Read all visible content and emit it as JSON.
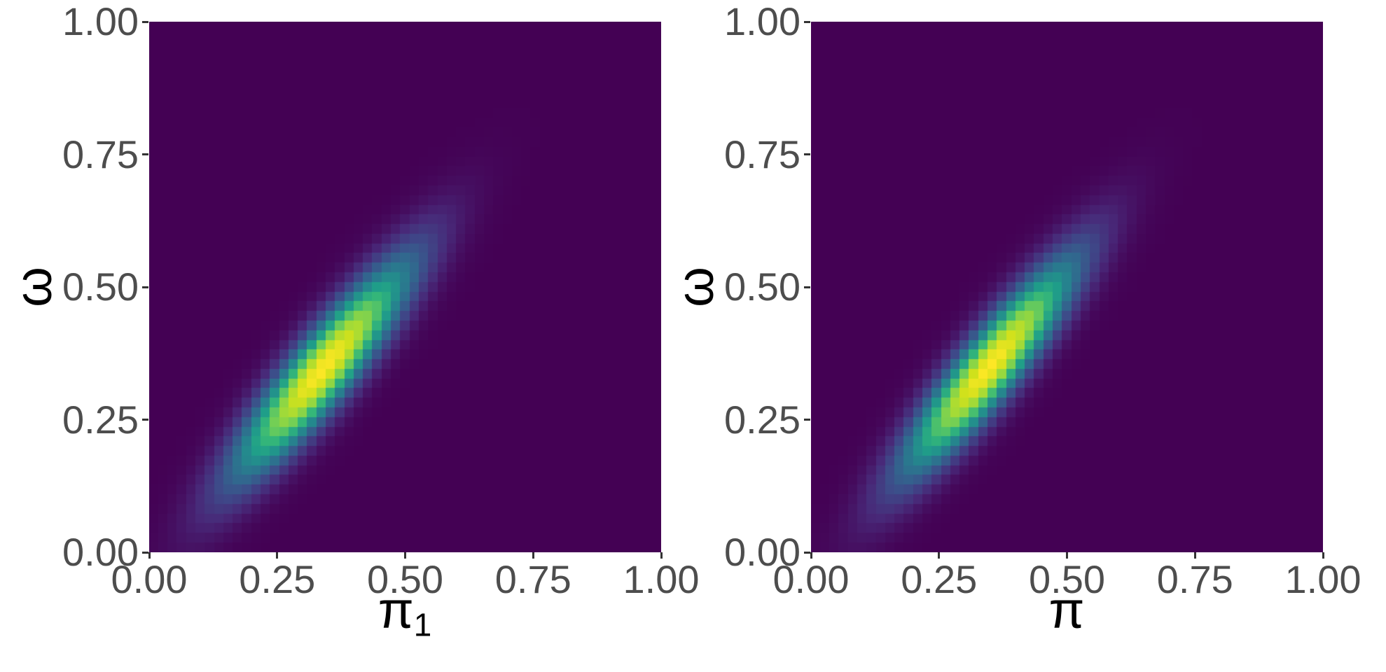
{
  "figure": {
    "background": "#ffffff",
    "tick_mark_color": "#333333",
    "tick_label_color": "#4d4d4d",
    "axis_title_color": "#000000"
  },
  "axes": {
    "x_tick_labels": [
      "0.00",
      "0.25",
      "0.50",
      "0.75",
      "1.00"
    ],
    "y_tick_labels": [
      "0.00",
      "0.25",
      "0.50",
      "0.75",
      "1.00"
    ]
  },
  "panels": {
    "left": {
      "x_title": "π",
      "x_title_sub": "1",
      "y_title": "ω"
    },
    "right": {
      "x_title": "π",
      "x_title_sub": "",
      "y_title": "ω"
    }
  },
  "chart_data": [
    {
      "type": "heatmap",
      "panel": "left",
      "title": "",
      "xlabel": "π1",
      "ylabel": "ω",
      "x_range": [
        0,
        1
      ],
      "y_range": [
        0,
        1
      ],
      "x_ticks": [
        0,
        0.25,
        0.5,
        0.75,
        1
      ],
      "y_ticks": [
        0,
        0.25,
        0.5,
        0.75,
        1
      ],
      "grid": false,
      "legend": "none",
      "grid_n": 55,
      "density": {
        "model": "bivariate_normal",
        "mean": [
          0.34,
          0.345
        ],
        "sd": [
          0.085,
          0.1
        ],
        "rho": 0.9,
        "peak": [
          0.33,
          0.335
        ],
        "visible_extent_x": [
          0.12,
          0.6
        ],
        "visible_extent_y": [
          0.1,
          0.65
        ]
      },
      "colormap": {
        "name": "viridis",
        "gamma": 0.55,
        "low": "#440154",
        "high": "#FDE725",
        "stops": [
          "#440154",
          "#482878",
          "#3E4A89",
          "#31688E",
          "#26828E",
          "#1F9E89",
          "#35B779",
          "#6DCD59",
          "#A0DA39",
          "#D0E11C",
          "#FDE725"
        ]
      }
    },
    {
      "type": "heatmap",
      "panel": "right",
      "title": "",
      "xlabel": "π",
      "ylabel": "ω",
      "x_range": [
        0,
        1
      ],
      "y_range": [
        0,
        1
      ],
      "x_ticks": [
        0,
        0.25,
        0.5,
        0.75,
        1
      ],
      "y_ticks": [
        0,
        0.25,
        0.5,
        0.75,
        1
      ],
      "grid": false,
      "legend": "none",
      "grid_n": 55,
      "density": {
        "model": "bivariate_normal",
        "mean": [
          0.35,
          0.35
        ],
        "sd": [
          0.083,
          0.099
        ],
        "rho": 0.905,
        "peak": [
          0.35,
          0.345
        ],
        "visible_extent_x": [
          0.13,
          0.62
        ],
        "visible_extent_y": [
          0.1,
          0.67
        ]
      },
      "colormap": {
        "name": "viridis",
        "gamma": 0.55,
        "low": "#440154",
        "high": "#FDE725",
        "stops": [
          "#440154",
          "#482878",
          "#3E4A89",
          "#31688E",
          "#26828E",
          "#1F9E89",
          "#35B779",
          "#6DCD59",
          "#A0DA39",
          "#D0E11C",
          "#FDE725"
        ]
      }
    }
  ]
}
